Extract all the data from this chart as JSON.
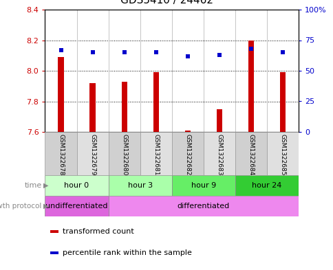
{
  "title": "GDS5410 / 24462",
  "samples": [
    "GSM1322678",
    "GSM1322679",
    "GSM1322680",
    "GSM1322681",
    "GSM1322682",
    "GSM1322683",
    "GSM1322684",
    "GSM1322685"
  ],
  "transformed_count": [
    8.09,
    7.92,
    7.93,
    7.99,
    7.61,
    7.75,
    8.2,
    7.99
  ],
  "percentile_rank": [
    67,
    65,
    65,
    65,
    62,
    63,
    68,
    65
  ],
  "ylim_left": [
    7.6,
    8.4
  ],
  "yticks_left": [
    7.6,
    7.8,
    8.0,
    8.2,
    8.4
  ],
  "yticks_right": [
    0,
    25,
    50,
    75,
    100
  ],
  "ytick_labels_right": [
    "0",
    "25",
    "50",
    "75",
    "100%"
  ],
  "time_groups": [
    {
      "label": "hour 0",
      "start": 0,
      "end": 2,
      "color": "#ccffcc"
    },
    {
      "label": "hour 3",
      "start": 2,
      "end": 4,
      "color": "#aaffaa"
    },
    {
      "label": "hour 9",
      "start": 4,
      "end": 6,
      "color": "#66ee66"
    },
    {
      "label": "hour 24",
      "start": 6,
      "end": 8,
      "color": "#33cc33"
    }
  ],
  "growth_groups": [
    {
      "label": "undifferentiated",
      "start": 0,
      "end": 2,
      "color": "#dd66dd"
    },
    {
      "label": "differentiated",
      "start": 2,
      "end": 8,
      "color": "#ee88ee"
    }
  ],
  "bar_color": "#cc0000",
  "dot_color": "#0000cc",
  "tick_color_left": "#cc0000",
  "tick_color_right": "#0000cc",
  "sample_box_colors": [
    "#d0d0d0",
    "#e0e0e0",
    "#d0d0d0",
    "#e0e0e0",
    "#d0d0d0",
    "#e0e0e0",
    "#d0d0d0",
    "#e0e0e0"
  ],
  "legend_items": [
    {
      "label": "transformed count",
      "color": "#cc0000",
      "marker": "s"
    },
    {
      "label": "percentile rank within the sample",
      "color": "#0000cc",
      "marker": "s"
    }
  ]
}
